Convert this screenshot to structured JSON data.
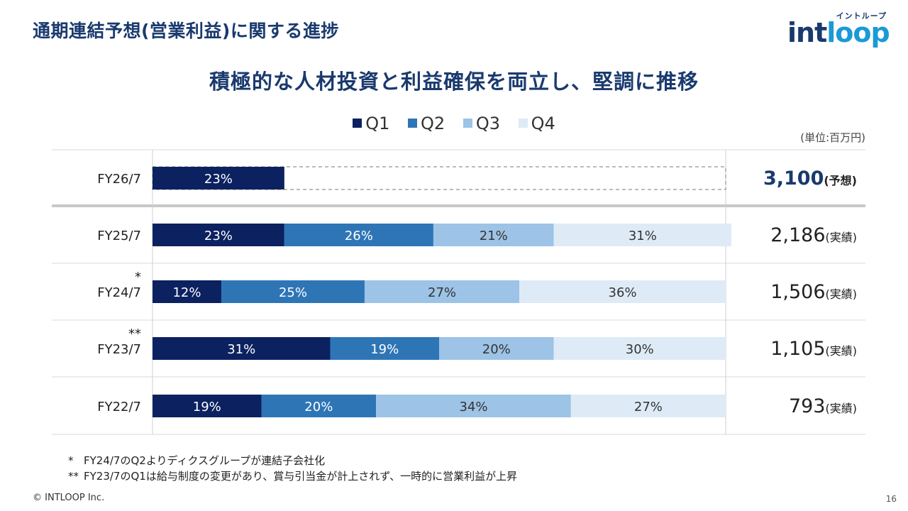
{
  "header": {
    "title": "通期連結予想(営業利益)に関する進捗",
    "logo_text_prefix": "int",
    "logo_text_suffix": "loop",
    "logo_kana": "イントループ"
  },
  "headline": "積極的な人材投資と利益確保を両立し、堅調に推移",
  "unit_label": "(単位:百万円)",
  "colors": {
    "q1": "#0b2160",
    "q2": "#2e75b6",
    "q3": "#9dc3e6",
    "q4": "#deebf7",
    "title": "#1a3a6e"
  },
  "chart_data": {
    "type": "bar",
    "orientation": "horizontal",
    "stacked": true,
    "title": "積極的な人材投資と利益確保を両立し、堅調に推移",
    "unit": "%",
    "legend_position": "top",
    "categories": [
      "FY26/7",
      "FY25/7",
      "FY24/7",
      "FY23/7",
      "FY22/7"
    ],
    "series": [
      {
        "name": "Q1",
        "values": [
          23,
          23,
          12,
          31,
          19
        ],
        "labels": [
          "23%",
          "23%",
          "12%",
          "31%",
          "19%"
        ]
      },
      {
        "name": "Q2",
        "values": [
          0,
          26,
          25,
          19,
          20
        ],
        "labels": [
          "",
          "26%",
          "25%",
          "19%",
          "20%"
        ]
      },
      {
        "name": "Q3",
        "values": [
          0,
          21,
          27,
          20,
          34
        ],
        "labels": [
          "",
          "21%",
          "27%",
          "20%",
          "34%"
        ]
      },
      {
        "name": "Q4",
        "values": [
          0,
          31,
          36,
          30,
          27
        ],
        "labels": [
          "",
          "31%",
          "36%",
          "30%",
          "27%"
        ]
      }
    ],
    "row_marks": [
      "",
      "",
      "*",
      "**",
      ""
    ],
    "forecast_category": "FY26/7",
    "totals": [
      {
        "value": "3,100",
        "note": "(予想)"
      },
      {
        "value": "2,186",
        "note": "(実績)"
      },
      {
        "value": "1,506",
        "note": "(実績)"
      },
      {
        "value": "1,105",
        "note": "(実績)"
      },
      {
        "value": "793",
        "note": "(実績)"
      }
    ]
  },
  "footnotes": [
    {
      "mark": "*",
      "text": "FY24/7のQ2よりディクスグループが連結子会社化"
    },
    {
      "mark": "**",
      "text": "FY23/7のQ1は給与制度の変更があり、賞与引当金が計上されず、一時的に営業利益が上昇"
    }
  ],
  "footer": {
    "copyright": "© INTLOOP Inc.",
    "page_number": "16"
  }
}
